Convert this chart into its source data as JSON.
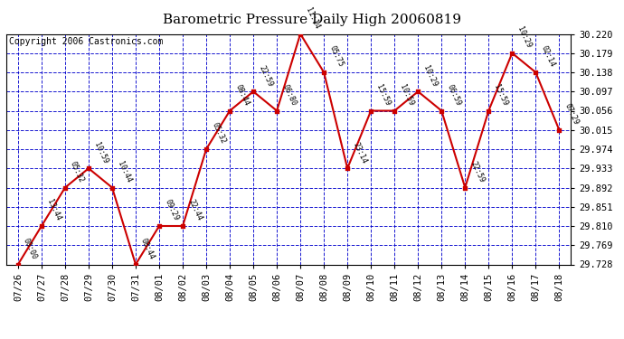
{
  "title": "Barometric Pressure Daily High 20060819",
  "copyright": "Copyright 2006 Castronics.com",
  "background_color": "#ffffff",
  "plot_bg_color": "#ffffff",
  "grid_color": "#0000cc",
  "line_color": "#cc0000",
  "point_color": "#cc0000",
  "x_labels": [
    "07/26",
    "07/27",
    "07/28",
    "07/29",
    "07/30",
    "07/31",
    "08/01",
    "08/02",
    "08/03",
    "08/04",
    "08/05",
    "08/06",
    "08/07",
    "08/08",
    "08/09",
    "08/10",
    "08/11",
    "08/12",
    "08/13",
    "08/14",
    "08/15",
    "08/16",
    "08/17",
    "08/18"
  ],
  "y_values": [
    29.728,
    29.81,
    29.892,
    29.933,
    29.892,
    29.728,
    29.81,
    29.81,
    29.974,
    30.056,
    30.097,
    30.056,
    30.22,
    30.138,
    29.933,
    30.056,
    30.056,
    30.097,
    30.056,
    29.892,
    30.056,
    30.179,
    30.138,
    30.015
  ],
  "time_labels": [
    "00:00",
    "13:44",
    "05:32",
    "10:59",
    "10:44",
    "08:44",
    "09:29",
    "22:44",
    "05:32",
    "08:44",
    "22:59",
    "06:80",
    "11:14",
    "05:75",
    "23:14",
    "15:59",
    "10:59",
    "10:29",
    "06:59",
    "22:59",
    "15:59",
    "10:29",
    "02:14",
    "07:29"
  ],
  "ylim_min": 29.728,
  "ylim_max": 30.22,
  "yticks": [
    29.728,
    29.769,
    29.81,
    29.851,
    29.892,
    29.933,
    29.974,
    30.015,
    30.056,
    30.097,
    30.138,
    30.179,
    30.22
  ],
  "title_fontsize": 11,
  "tick_fontsize": 7.5,
  "annot_fontsize": 6,
  "copyright_fontsize": 7
}
